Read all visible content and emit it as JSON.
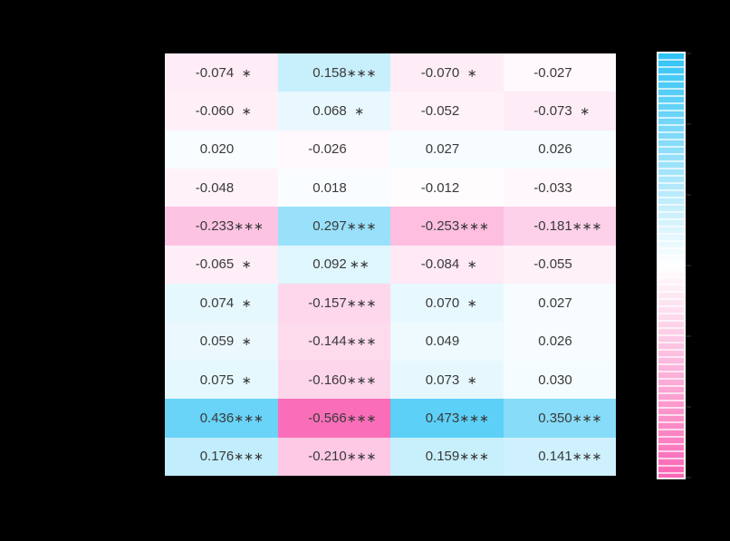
{
  "figure": {
    "background_color": "#000000",
    "cell_text_color": "#3a3a3a"
  },
  "chart_data": {
    "type": "heatmap",
    "n_rows": 11,
    "n_cols": 4,
    "cells": [
      [
        {
          "label": "-0.074",
          "value": -0.074,
          "stars": "∗"
        },
        {
          "label": "0.158",
          "value": 0.158,
          "stars": "∗∗∗"
        },
        {
          "label": "-0.070",
          "value": -0.07,
          "stars": "∗"
        },
        {
          "label": "-0.027",
          "value": -0.027,
          "stars": ""
        }
      ],
      [
        {
          "label": "-0.060",
          "value": -0.06,
          "stars": "∗"
        },
        {
          "label": "0.068",
          "value": 0.068,
          "stars": "∗"
        },
        {
          "label": "-0.052",
          "value": -0.052,
          "stars": ""
        },
        {
          "label": "-0.073",
          "value": -0.073,
          "stars": "∗"
        }
      ],
      [
        {
          "label": "0.020",
          "value": 0.02,
          "stars": ""
        },
        {
          "label": "-0.026",
          "value": -0.026,
          "stars": ""
        },
        {
          "label": "0.027",
          "value": 0.027,
          "stars": ""
        },
        {
          "label": "0.026",
          "value": 0.026,
          "stars": ""
        }
      ],
      [
        {
          "label": "-0.048",
          "value": -0.048,
          "stars": ""
        },
        {
          "label": "0.018",
          "value": 0.018,
          "stars": ""
        },
        {
          "label": "-0.012",
          "value": -0.012,
          "stars": ""
        },
        {
          "label": "-0.033",
          "value": -0.033,
          "stars": ""
        }
      ],
      [
        {
          "label": "-0.233",
          "value": -0.233,
          "stars": "∗∗∗"
        },
        {
          "label": "0.297",
          "value": 0.297,
          "stars": "∗∗∗"
        },
        {
          "label": "-0.253",
          "value": -0.253,
          "stars": "∗∗∗"
        },
        {
          "label": "-0.181",
          "value": -0.181,
          "stars": "∗∗∗"
        }
      ],
      [
        {
          "label": "-0.065",
          "value": -0.065,
          "stars": "∗"
        },
        {
          "label": "0.092",
          "value": 0.092,
          "stars": "∗∗"
        },
        {
          "label": "-0.084",
          "value": -0.084,
          "stars": "∗"
        },
        {
          "label": "-0.055",
          "value": -0.055,
          "stars": ""
        }
      ],
      [
        {
          "label": "0.074",
          "value": 0.074,
          "stars": "∗"
        },
        {
          "label": "-0.157",
          "value": -0.157,
          "stars": "∗∗∗"
        },
        {
          "label": "0.070",
          "value": 0.07,
          "stars": "∗"
        },
        {
          "label": "0.027",
          "value": 0.027,
          "stars": ""
        }
      ],
      [
        {
          "label": "0.059",
          "value": 0.059,
          "stars": "∗"
        },
        {
          "label": "-0.144",
          "value": -0.144,
          "stars": "∗∗∗"
        },
        {
          "label": "0.049",
          "value": 0.049,
          "stars": ""
        },
        {
          "label": "0.026",
          "value": 0.026,
          "stars": ""
        }
      ],
      [
        {
          "label": "0.075",
          "value": 0.075,
          "stars": "∗"
        },
        {
          "label": "-0.160",
          "value": -0.16,
          "stars": "∗∗∗"
        },
        {
          "label": "0.073",
          "value": 0.073,
          "stars": "∗"
        },
        {
          "label": "0.030",
          "value": 0.03,
          "stars": ""
        }
      ],
      [
        {
          "label": "0.436",
          "value": 0.436,
          "stars": "∗∗∗"
        },
        {
          "label": "-0.566",
          "value": -0.566,
          "stars": "∗∗∗"
        },
        {
          "label": "0.473",
          "value": 0.473,
          "stars": "∗∗∗"
        },
        {
          "label": "0.350",
          "value": 0.35,
          "stars": "∗∗∗"
        }
      ],
      [
        {
          "label": "0.176",
          "value": 0.176,
          "stars": "∗∗∗"
        },
        {
          "label": "-0.210",
          "value": -0.21,
          "stars": "∗∗∗"
        },
        {
          "label": "0.159",
          "value": 0.159,
          "stars": "∗∗∗"
        },
        {
          "label": "0.141",
          "value": 0.141,
          "stars": "∗∗∗"
        }
      ]
    ],
    "colorbar": {
      "orientation": "vertical",
      "position": "right",
      "top_color": "#30C3F5",
      "mid_color": "#FFFFFF",
      "bottom_color": "#FA65B5",
      "value_domain": [
        -0.6,
        0.6
      ],
      "tick_count": 7
    },
    "legend_position": "right",
    "grid": false
  }
}
